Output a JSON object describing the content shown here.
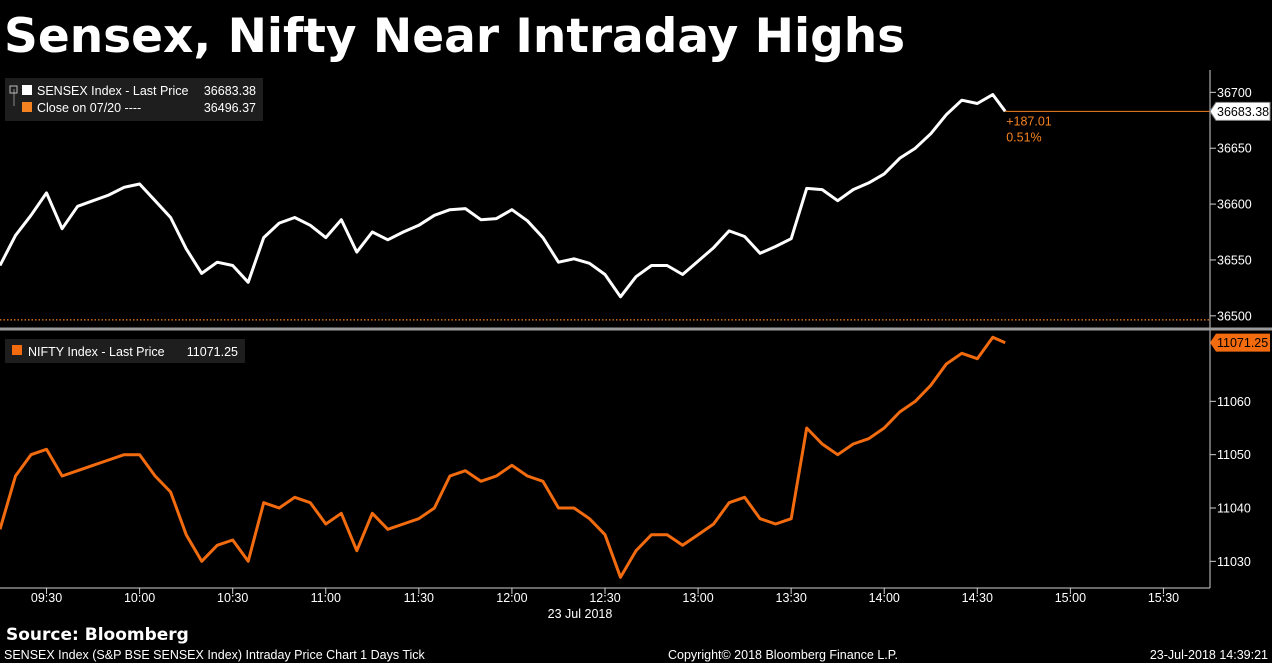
{
  "title": "Sensex, Nifty Near Intraday Highs",
  "source": "Source: Bloomberg",
  "footer": {
    "left": "SENSEX Index (S&P BSE SENSEX Index) Intraday Price Chart 1 Days  Tick",
    "center": "Copyright© 2018 Bloomberg Finance L.P.",
    "right": "23-Jul-2018 14:39:21"
  },
  "colors": {
    "background": "#000000",
    "sensex_line": "#ffffff",
    "nifty_line": "#f26b0f",
    "accent": "#f58220",
    "divider": "#a0a0a0"
  },
  "chart_data": [
    {
      "type": "line",
      "legend": [
        {
          "label": "SENSEX Index - Last Price",
          "value": "36683.38",
          "color": "#ffffff"
        },
        {
          "label": "Close on 07/20 ----",
          "value": "36496.37",
          "color": "#f58220"
        }
      ],
      "change_label": "+187.01",
      "change_pct_label": "0.51%",
      "last_price_tag": "36683.38",
      "previous_close": 36496.37,
      "y_ticks": [
        "36700",
        "36650",
        "36600",
        "36550",
        "36500"
      ],
      "ylim": [
        36490,
        36720
      ],
      "x_time_range": [
        "09:15",
        "15:45"
      ],
      "series": [
        {
          "name": "SENSEX Index - Last Price",
          "x": [
            "09:15",
            "09:20",
            "09:25",
            "09:30",
            "09:35",
            "09:40",
            "09:45",
            "09:50",
            "09:55",
            "10:00",
            "10:05",
            "10:10",
            "10:15",
            "10:20",
            "10:25",
            "10:30",
            "10:35",
            "10:40",
            "10:45",
            "10:50",
            "10:55",
            "11:00",
            "11:05",
            "11:10",
            "11:15",
            "11:20",
            "11:25",
            "11:30",
            "11:35",
            "11:40",
            "11:45",
            "11:50",
            "11:55",
            "12:00",
            "12:05",
            "12:10",
            "12:15",
            "12:20",
            "12:25",
            "12:30",
            "12:35",
            "12:40",
            "12:45",
            "12:50",
            "12:55",
            "13:00",
            "13:05",
            "13:10",
            "13:15",
            "13:20",
            "13:25",
            "13:30",
            "13:35",
            "13:40",
            "13:45",
            "13:50",
            "13:55",
            "14:00",
            "14:05",
            "14:10",
            "14:15",
            "14:20",
            "14:25",
            "14:30",
            "14:35",
            "14:39"
          ],
          "values": [
            36545,
            36572,
            36590,
            36610,
            36578,
            36598,
            36603,
            36608,
            36615,
            36618,
            36603,
            36588,
            36560,
            36538,
            36548,
            36545,
            36530,
            36570,
            36583,
            36588,
            36581,
            36570,
            36586,
            36557,
            36575,
            36568,
            36575,
            36581,
            36590,
            36595,
            36596,
            36586,
            36587,
            36595,
            36585,
            36570,
            36548,
            36551,
            36547,
            36537,
            36517,
            36535,
            36545,
            36545,
            36537,
            36549,
            36561,
            36576,
            36571,
            36556,
            36562,
            36569,
            36614,
            36613,
            36603,
            36613,
            36619,
            36627,
            36641,
            36650,
            36663,
            36680,
            36693,
            36690,
            36698,
            36683
          ]
        }
      ]
    },
    {
      "type": "line",
      "legend": [
        {
          "label": "NIFTY Index - Last Price",
          "value": "11071.25",
          "color": "#f26b0f"
        }
      ],
      "last_price_tag": "11071.25",
      "y_ticks": [
        "11060",
        "11050",
        "11040",
        "11030"
      ],
      "ylim": [
        11025,
        11073
      ],
      "x_time_range": [
        "09:15",
        "15:45"
      ],
      "series": [
        {
          "name": "NIFTY Index - Last Price",
          "x": [
            "09:15",
            "09:20",
            "09:25",
            "09:30",
            "09:35",
            "09:40",
            "09:45",
            "09:50",
            "09:55",
            "10:00",
            "10:05",
            "10:10",
            "10:15",
            "10:20",
            "10:25",
            "10:30",
            "10:35",
            "10:40",
            "10:45",
            "10:50",
            "10:55",
            "11:00",
            "11:05",
            "11:10",
            "11:15",
            "11:20",
            "11:25",
            "11:30",
            "11:35",
            "11:40",
            "11:45",
            "11:50",
            "11:55",
            "12:00",
            "12:05",
            "12:10",
            "12:15",
            "12:20",
            "12:25",
            "12:30",
            "12:35",
            "12:40",
            "12:45",
            "12:50",
            "12:55",
            "13:00",
            "13:05",
            "13:10",
            "13:15",
            "13:20",
            "13:25",
            "13:30",
            "13:35",
            "13:40",
            "13:45",
            "13:50",
            "13:55",
            "14:00",
            "14:05",
            "14:10",
            "14:15",
            "14:20",
            "14:25",
            "14:30",
            "14:35",
            "14:39"
          ],
          "values": [
            11036,
            11046,
            11050,
            11051,
            11046,
            11047,
            11048,
            11049,
            11050,
            11050,
            11046,
            11043,
            11035,
            11030,
            11033,
            11034,
            11030,
            11041,
            11040,
            11042,
            11041,
            11037,
            11039,
            11032,
            11039,
            11036,
            11037,
            11038,
            11040,
            11046,
            11047,
            11045,
            11046,
            11048,
            11046,
            11045,
            11040,
            11040,
            11038,
            11035,
            11027,
            11032,
            11035,
            11035,
            11033,
            11035,
            11037,
            11041,
            11042,
            11038,
            11037,
            11038,
            11055,
            11052,
            11050,
            11052,
            11053,
            11055,
            11058,
            11060,
            11063,
            11067,
            11069,
            11068,
            11072,
            11071
          ]
        }
      ]
    }
  ],
  "x_axis": {
    "labels": [
      "09:30",
      "10:00",
      "10:30",
      "11:00",
      "11:30",
      "12:00",
      "12:30",
      "13:00",
      "13:30",
      "14:00",
      "14:30",
      "15:00",
      "15:30"
    ],
    "date_label": "23 Jul 2018"
  }
}
